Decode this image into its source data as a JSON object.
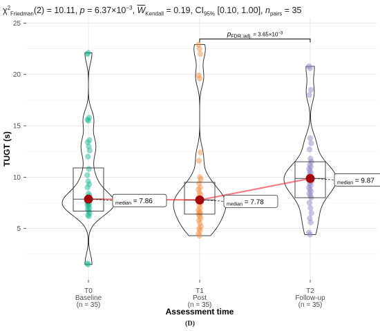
{
  "header": {
    "stat_chi": "χ",
    "stat_chi_sup": "2",
    "stat_chi_sub": "Friedman",
    "stat_df_value": "(2) = 10.11,",
    "stat_p": "p",
    "stat_p_value": " = 6.37×10",
    "stat_p_exp": "−3",
    "stat_w": "W",
    "stat_w_sub": "Kendall",
    "stat_w_value": " = 0.19, CI",
    "stat_ci_sub": "95%",
    "stat_ci_value": " [0.10, 1.00],",
    "stat_n": "n",
    "stat_n_sub": "pairs",
    "stat_n_value": " = 35"
  },
  "caption": "(D)",
  "chart_data": {
    "type": "violin",
    "xlabel": "Assessment time",
    "ylabel": "TUGT (s)",
    "ylim": [
      0,
      25.5
    ],
    "yticks": [
      5,
      10,
      15,
      20,
      25
    ],
    "grid": true,
    "categories": [
      {
        "code": "T0",
        "name": "Baseline",
        "n_label": "(n = 35)",
        "color": "#17b18f",
        "median": 7.86,
        "q1": 6.7,
        "q3": 10.9,
        "median_label": "median",
        "median_value": "= 7.86",
        "points": [
          22.0,
          22.1,
          15.8,
          15.6,
          15.5,
          13.6,
          13.4,
          13.0,
          12.6,
          12.0,
          10.8,
          10.2,
          9.6,
          9.3,
          9.0,
          8.4,
          8.2,
          8.0,
          7.9,
          7.85,
          7.8,
          7.7,
          7.6,
          7.5,
          7.4,
          7.3,
          7.2,
          7.0,
          6.9,
          6.7,
          6.5,
          6.3,
          6.2,
          1.6,
          1.5
        ]
      },
      {
        "code": "T1",
        "name": "Post",
        "n_label": "(n = 35)",
        "color": "#f08a3c",
        "median": 7.78,
        "q1": 6.4,
        "q3": 9.5,
        "median_label": "median",
        "median_value": "= 7.78",
        "points": [
          22.9,
          22.5,
          22.0,
          19.9,
          19.6,
          12.4,
          11.6,
          10.0,
          9.8,
          9.4,
          9.0,
          8.8,
          8.5,
          8.3,
          8.0,
          7.9,
          7.8,
          7.75,
          7.6,
          7.5,
          7.3,
          7.0,
          6.8,
          6.6,
          6.5,
          6.4,
          6.2,
          6.0,
          5.8,
          5.5,
          5.2,
          5.0,
          4.8,
          4.5,
          4.3
        ]
      },
      {
        "code": "T2",
        "name": "Follow-up",
        "n_label": "(n = 35)",
        "color": "#8a80c2",
        "median": 9.87,
        "q1": 8.0,
        "q3": 11.5,
        "median_label": "median",
        "median_value": "= 9.87",
        "points": [
          20.8,
          20.6,
          18.5,
          18.0,
          13.8,
          13.3,
          12.7,
          11.8,
          11.5,
          11.2,
          11.0,
          10.8,
          10.6,
          10.4,
          10.2,
          10.0,
          9.9,
          9.85,
          9.8,
          9.6,
          9.4,
          9.2,
          9.0,
          8.8,
          8.6,
          8.4,
          8.2,
          8.0,
          7.5,
          7.0,
          6.5,
          6.0,
          5.6,
          4.6,
          4.4
        ]
      }
    ],
    "comparison": {
      "from": "T1",
      "to": "T2",
      "y": 24.8,
      "label_p": "p",
      "label_sub": "FDR□adj.",
      "label_value": " = 3.65×10",
      "label_exp": "−3"
    }
  }
}
